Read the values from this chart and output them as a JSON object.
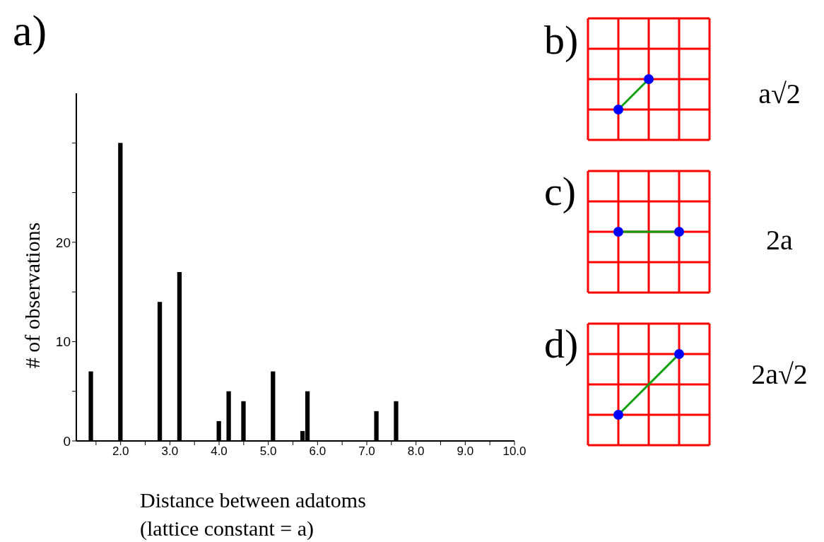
{
  "chart_data": {
    "type": "bar",
    "title": "a)",
    "xlabel": "Distance between adatoms\n(lattice constant = a)",
    "ylabel": "# of observations",
    "x": [
      1.4,
      2.0,
      2.8,
      3.2,
      4.0,
      4.2,
      4.5,
      5.1,
      5.7,
      5.8,
      7.2,
      7.6
    ],
    "values": [
      7,
      30,
      14,
      17,
      2,
      5,
      4,
      7,
      1,
      5,
      3,
      4
    ],
    "color": "#000000",
    "xlim": [
      1.1,
      10
    ],
    "xticks": [
      {
        "value": 1.5,
        "label": null
      },
      {
        "value": 2,
        "label": "2.0"
      },
      {
        "value": 2.5,
        "label": null
      },
      {
        "value": 3,
        "label": "3.0"
      },
      {
        "value": 3.5,
        "label": null
      },
      {
        "value": 4,
        "label": "4.0"
      },
      {
        "value": 4.5,
        "label": null
      },
      {
        "value": 5,
        "label": "5.0"
      },
      {
        "value": 5.5,
        "label": null
      },
      {
        "value": 6,
        "label": "6.0"
      },
      {
        "value": 6.5,
        "label": null
      },
      {
        "value": 7,
        "label": "7.0"
      },
      {
        "value": 7.5,
        "label": null
      },
      {
        "value": 8,
        "label": "8.0"
      },
      {
        "value": 8.5,
        "label": null
      },
      {
        "value": 9,
        "label": "9.0"
      },
      {
        "value": 9.5,
        "label": null
      },
      {
        "value": 10,
        "label": "10.0"
      }
    ],
    "ylim": [
      0,
      35
    ],
    "yticks": [
      0,
      {
        "value": 5,
        "label": null
      },
      10,
      {
        "value": 15,
        "label": null
      },
      20,
      {
        "value": 25,
        "label": null
      },
      {
        "value": 30,
        "label": null
      }
    ],
    "annotations": [
      "b)",
      "c)",
      "d)",
      "a√2",
      "2a",
      "2a√2"
    ]
  }
}
